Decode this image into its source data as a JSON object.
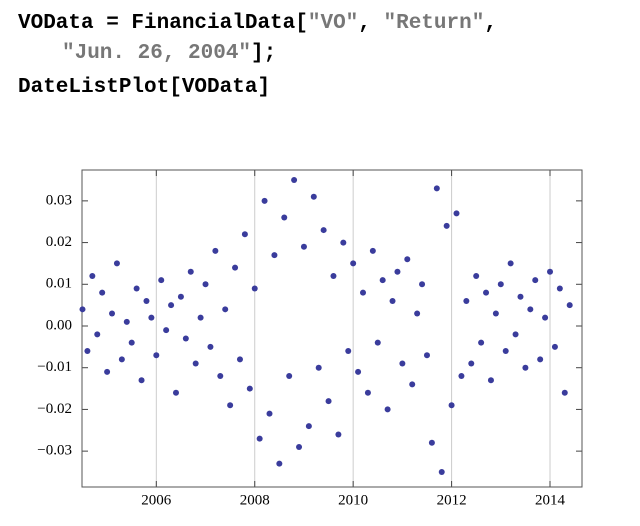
{
  "code": {
    "lines": [
      [
        "VOData = FinancialData[",
        "\"VO\"",
        ", ",
        "\"Return\"",
        ","
      ],
      [
        "\"Jun. 26, 2004\"",
        "];"
      ],
      [
        "DateListPlot[VOData]"
      ]
    ]
  },
  "chart_data": {
    "type": "scatter",
    "color": "#3a3c9c",
    "grid": "x",
    "xlim": [
      2004.49,
      2014.65
    ],
    "ylim": [
      -0.0386,
      0.0374
    ],
    "xticks": [
      2006,
      2008,
      2010,
      2012,
      2014
    ],
    "yticks": [
      {
        "value": -0.03,
        "label": "−0.03"
      },
      {
        "value": -0.02,
        "label": "−0.02"
      },
      {
        "value": -0.01,
        "label": "−0.01"
      },
      {
        "value": 0,
        "label": "0.00"
      },
      0.01,
      0.02,
      0.03
    ],
    "series": [
      {
        "x": [
          2004.5,
          2004.6,
          2004.7,
          2004.8,
          2004.9,
          2005.0,
          2005.1,
          2005.2,
          2005.3,
          2005.4,
          2005.5,
          2005.6,
          2005.7,
          2005.8,
          2005.9,
          2006.0,
          2006.1,
          2006.2,
          2006.3,
          2006.4,
          2006.5,
          2006.6,
          2006.7,
          2006.8,
          2006.9,
          2007.0,
          2007.1,
          2007.2,
          2007.3,
          2007.4,
          2007.5,
          2007.6,
          2007.7,
          2007.8,
          2007.9,
          2008.0,
          2008.1,
          2008.2,
          2008.3,
          2008.4,
          2008.5,
          2008.6,
          2008.7,
          2008.8,
          2008.9,
          2009.0,
          2009.1,
          2009.2,
          2009.3,
          2009.4,
          2009.5,
          2009.6,
          2009.7,
          2009.8,
          2009.9,
          2010.0,
          2010.1,
          2010.2,
          2010.3,
          2010.4,
          2010.5,
          2010.6,
          2010.7,
          2010.8,
          2010.9,
          2011.0,
          2011.1,
          2011.2,
          2011.3,
          2011.4,
          2011.5,
          2011.6,
          2011.7,
          2011.8,
          2011.9,
          2012.0,
          2012.1,
          2012.2,
          2012.3,
          2012.4,
          2012.5,
          2012.6,
          2012.7,
          2012.8,
          2012.9,
          2013.0,
          2013.1,
          2013.2,
          2013.3,
          2013.4,
          2013.5,
          2013.6,
          2013.7,
          2013.8,
          2013.9,
          2014.0,
          2014.1,
          2014.2,
          2014.3,
          2014.4
        ],
        "values": [
          0.004,
          -0.006,
          0.012,
          -0.002,
          0.008,
          -0.011,
          0.003,
          0.015,
          -0.008,
          0.001,
          -0.004,
          0.009,
          -0.013,
          0.006,
          0.002,
          -0.007,
          0.011,
          -0.001,
          0.005,
          -0.016,
          0.007,
          -0.003,
          0.013,
          -0.009,
          0.002,
          0.01,
          -0.005,
          0.018,
          -0.012,
          0.004,
          -0.019,
          0.014,
          -0.008,
          0.022,
          -0.015,
          0.009,
          -0.027,
          0.03,
          -0.021,
          0.017,
          -0.033,
          0.026,
          -0.012,
          0.035,
          -0.029,
          0.019,
          -0.024,
          0.031,
          -0.01,
          0.023,
          -0.018,
          0.012,
          -0.026,
          0.02,
          -0.006,
          0.015,
          -0.011,
          0.008,
          -0.016,
          0.018,
          -0.004,
          0.011,
          -0.02,
          0.006,
          0.013,
          -0.009,
          0.016,
          -0.014,
          0.003,
          0.01,
          -0.007,
          -0.028,
          0.033,
          -0.035,
          0.024,
          -0.019,
          0.027,
          -0.012,
          0.006,
          -0.009,
          0.012,
          -0.004,
          0.008,
          -0.013,
          0.003,
          0.01,
          -0.006,
          0.015,
          -0.002,
          0.007,
          -0.01,
          0.004,
          0.011,
          -0.008,
          0.002,
          0.013,
          -0.005,
          0.009,
          -0.016,
          0.005
        ]
      }
    ]
  }
}
